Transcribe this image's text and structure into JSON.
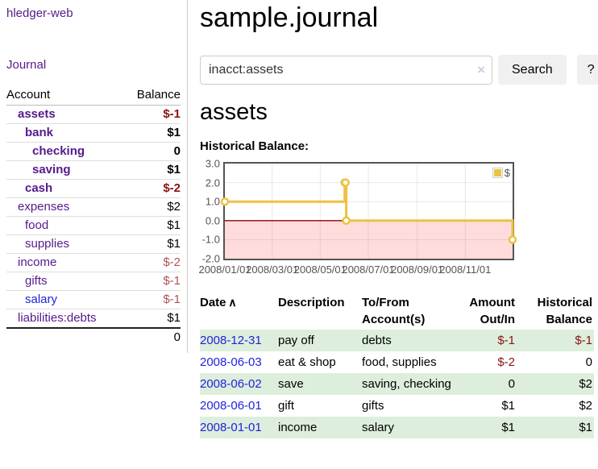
{
  "app": {
    "title": "hledger-web"
  },
  "colors": {
    "link_purple": "#551a8b",
    "link_blue": "#2222dd",
    "negative_strong": "#8b1212",
    "negative_soft": "#aa5555",
    "row_stripe_green": "#ddeedd",
    "chart_line_gold": "#edc240",
    "chart_negative_fill": "#ffdcdc",
    "chart_zero_line": "#8b0000",
    "plot_border": "#545454",
    "button_bg": "#f0f0f0"
  },
  "sidebar": {
    "journal_link": "Journal",
    "accounts_table": {
      "headers": [
        "Account",
        "Balance"
      ],
      "rows": [
        {
          "account": "assets",
          "indent": 1,
          "bold": true,
          "link_color": "purple",
          "balance": "$-1",
          "balance_style": "neg-strong"
        },
        {
          "account": "bank",
          "indent": 2,
          "bold": true,
          "link_color": "purple",
          "balance": "$1",
          "balance_style": "pos-strong"
        },
        {
          "account": "checking",
          "indent": 3,
          "bold": true,
          "link_color": "purple",
          "balance": "0",
          "balance_style": "pos-strong"
        },
        {
          "account": "saving",
          "indent": 3,
          "bold": true,
          "link_color": "purple",
          "balance": "$1",
          "balance_style": "pos-strong"
        },
        {
          "account": "cash",
          "indent": 2,
          "bold": true,
          "link_color": "purple",
          "balance": "$-2",
          "balance_style": "neg-strong"
        },
        {
          "account": "expenses",
          "indent": 1,
          "bold": false,
          "link_color": "purple",
          "balance": "$2",
          "balance_style": "plain"
        },
        {
          "account": "food",
          "indent": 2,
          "bold": false,
          "link_color": "purple",
          "balance": "$1",
          "balance_style": "plain"
        },
        {
          "account": "supplies",
          "indent": 2,
          "bold": false,
          "link_color": "purple",
          "balance": "$1",
          "balance_style": "plain"
        },
        {
          "account": "income",
          "indent": 1,
          "bold": false,
          "link_color": "purple",
          "balance": "$-2",
          "balance_style": "neg-soft"
        },
        {
          "account": "gifts",
          "indent": 2,
          "bold": false,
          "link_color": "purple",
          "balance": "$-1",
          "balance_style": "neg-soft"
        },
        {
          "account": "salary",
          "indent": 2,
          "bold": false,
          "link_color": "blue",
          "balance": "$-1",
          "balance_style": "neg-soft"
        },
        {
          "account": "liabilities:debts",
          "indent": 1,
          "bold": false,
          "link_color": "purple",
          "balance": "$1",
          "balance_style": "plain"
        }
      ],
      "total": "0"
    }
  },
  "main": {
    "title": "sample.journal",
    "search": {
      "value": "inacct:assets",
      "clear_icon": "×",
      "button_label": "Search",
      "help_label": "?"
    },
    "account_heading": "assets",
    "chart_label": "Historical Balance:"
  },
  "chart_data": {
    "type": "line",
    "title": "Historical Balance",
    "steps": true,
    "legend": {
      "label": "$",
      "position": "top-right"
    },
    "series": [
      {
        "name": "$",
        "color": "#edc240",
        "points": [
          {
            "date": "2008-01-01",
            "day": 0,
            "y": 1
          },
          {
            "date": "2008-06-01",
            "day": 152,
            "y": 2
          },
          {
            "date": "2008-06-02",
            "day": 153,
            "y": 2
          },
          {
            "date": "2008-06-03",
            "day": 154,
            "y": 0
          },
          {
            "date": "2008-12-31",
            "day": 365,
            "y": -1
          }
        ]
      }
    ],
    "xlabel": "",
    "ylabel": "",
    "x_ticks": [
      {
        "label": "2008/01/01",
        "day": 0
      },
      {
        "label": "2008/03/01",
        "day": 60
      },
      {
        "label": "2008/05/01",
        "day": 121
      },
      {
        "label": "2008/07/01",
        "day": 182
      },
      {
        "label": "2008/09/01",
        "day": 244
      },
      {
        "label": "2008/11/01",
        "day": 305
      }
    ],
    "y_ticks": [
      3.0,
      2.0,
      1.0,
      0.0,
      -1.0,
      -2.0
    ],
    "ylim": [
      -2,
      3
    ],
    "xlim_days": [
      0,
      365
    ],
    "grid": true,
    "negative_region_shaded": true
  },
  "register": {
    "headers": [
      {
        "label": "Date",
        "sorted": true,
        "sort_icon": "∧",
        "align": "left"
      },
      {
        "label": "Description",
        "align": "left"
      },
      {
        "label": "To/From Account(s)",
        "align": "left"
      },
      {
        "label": "Amount Out/In",
        "align": "right"
      },
      {
        "label": "Historical Balance",
        "align": "right"
      }
    ],
    "rows": [
      {
        "date": "2008-12-31",
        "description": "pay off",
        "accounts": "debts",
        "amount": "$-1",
        "amount_negative": true,
        "balance": "$-1",
        "balance_negative": true
      },
      {
        "date": "2008-06-03",
        "description": "eat & shop",
        "accounts": "food, supplies",
        "amount": "$-2",
        "amount_negative": true,
        "balance": "0",
        "balance_negative": false
      },
      {
        "date": "2008-06-02",
        "description": "save",
        "accounts": "saving, checking",
        "amount": "0",
        "amount_negative": false,
        "balance": "$2",
        "balance_negative": false
      },
      {
        "date": "2008-06-01",
        "description": "gift",
        "accounts": "gifts",
        "amount": "$1",
        "amount_negative": false,
        "balance": "$2",
        "balance_negative": false
      },
      {
        "date": "2008-01-01",
        "description": "income",
        "accounts": "salary",
        "amount": "$1",
        "amount_negative": false,
        "balance": "$1",
        "balance_negative": false
      }
    ]
  }
}
